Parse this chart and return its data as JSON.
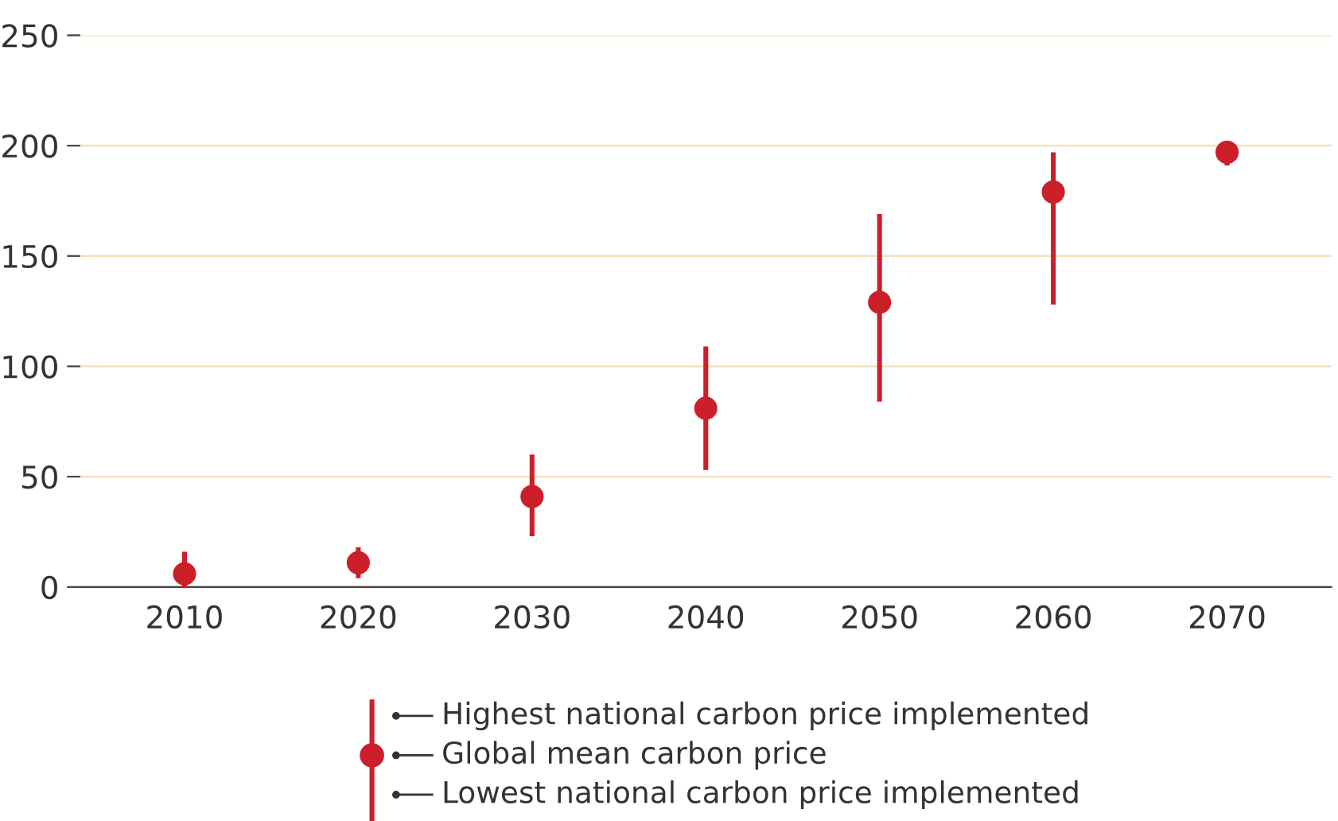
{
  "chart_data": {
    "type": "scatter",
    "categories": [
      "2010",
      "2020",
      "2030",
      "2040",
      "2050",
      "2060",
      "2070"
    ],
    "series": [
      {
        "color": "#cc1f2a",
        "values": [
          6,
          11,
          41,
          81,
          129,
          179,
          197
        ],
        "errors": [
          [
            0,
            16
          ],
          [
            4,
            18
          ],
          [
            23,
            60
          ],
          [
            53,
            109
          ],
          [
            84,
            169
          ],
          [
            128,
            197
          ],
          [
            191,
            197
          ]
        ]
      }
    ],
    "ylim": [
      0,
      250
    ],
    "yticks": [
      0,
      50,
      100,
      150,
      200,
      250
    ],
    "grid": "y",
    "marker": "circle",
    "annotations": [
      "Highest national carbon price implemented",
      "Global mean carbon price",
      "Lowest national carbon price implemented"
    ]
  }
}
